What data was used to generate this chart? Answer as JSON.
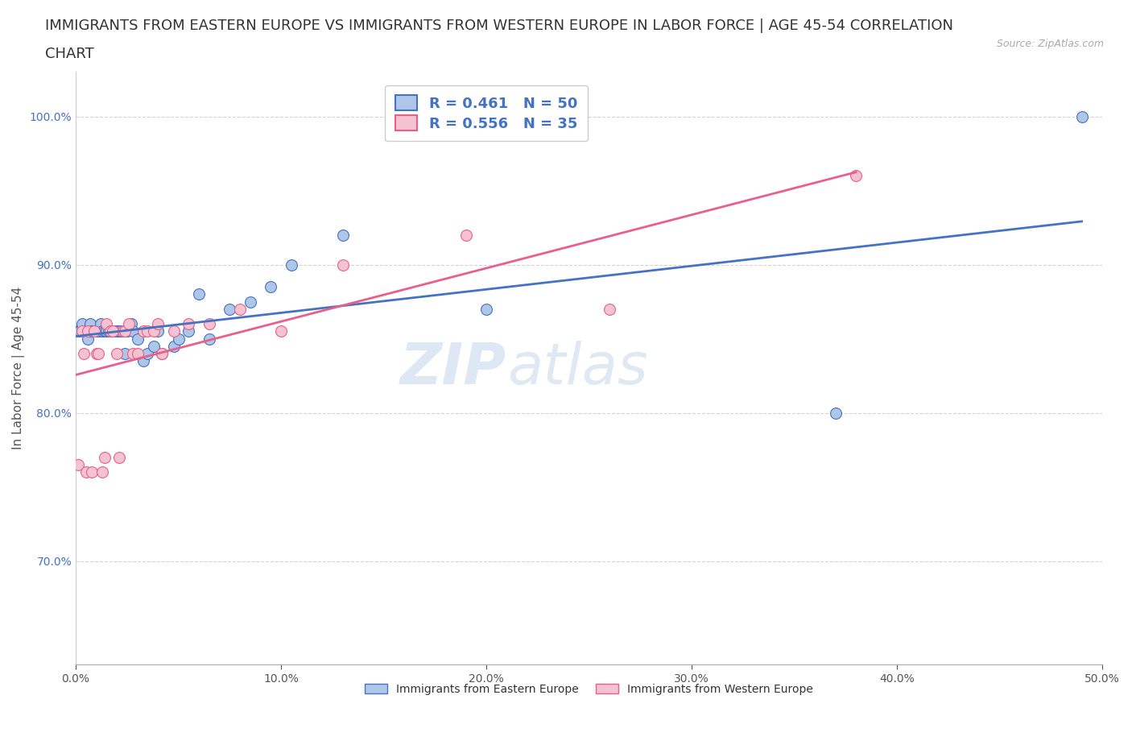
{
  "title_line1": "IMMIGRANTS FROM EASTERN EUROPE VS IMMIGRANTS FROM WESTERN EUROPE IN LABOR FORCE | AGE 45-54 CORRELATION",
  "title_line2": "CHART",
  "source": "Source: ZipAtlas.com",
  "ylabel": "In Labor Force | Age 45-54",
  "xlim": [
    0.0,
    0.5
  ],
  "ylim": [
    0.63,
    1.03
  ],
  "ytick_labels": [
    "70.0%",
    "80.0%",
    "90.0%",
    "100.0%"
  ],
  "ytick_values": [
    0.7,
    0.8,
    0.9,
    1.0
  ],
  "xtick_labels": [
    "0.0%",
    "10.0%",
    "20.0%",
    "30.0%",
    "40.0%",
    "50.0%"
  ],
  "xtick_values": [
    0.0,
    0.1,
    0.2,
    0.3,
    0.4,
    0.5
  ],
  "watermark_part1": "ZIP",
  "watermark_part2": "atlas",
  "r_eastern": 0.461,
  "n_eastern": 50,
  "r_western": 0.556,
  "n_western": 35,
  "color_eastern_fill": "#aec6e8",
  "color_western_fill": "#f4c2d0",
  "color_eastern_line": "#4472c4",
  "color_western_line": "#e8608a",
  "eastern_x": [
    0.001,
    0.002,
    0.003,
    0.003,
    0.005,
    0.006,
    0.007,
    0.007,
    0.008,
    0.008,
    0.009,
    0.009,
    0.01,
    0.01,
    0.011,
    0.012,
    0.013,
    0.013,
    0.014,
    0.015,
    0.016,
    0.017,
    0.018,
    0.019,
    0.02,
    0.021,
    0.022,
    0.024,
    0.025,
    0.027,
    0.028,
    0.03,
    0.033,
    0.035,
    0.038,
    0.04,
    0.042,
    0.048,
    0.05,
    0.055,
    0.06,
    0.065,
    0.075,
    0.085,
    0.095,
    0.105,
    0.13,
    0.2,
    0.37,
    0.49
  ],
  "eastern_y": [
    0.855,
    0.855,
    0.855,
    0.86,
    0.855,
    0.85,
    0.855,
    0.86,
    0.855,
    0.855,
    0.855,
    0.855,
    0.855,
    0.855,
    0.855,
    0.86,
    0.855,
    0.855,
    0.855,
    0.855,
    0.855,
    0.855,
    0.855,
    0.855,
    0.855,
    0.855,
    0.855,
    0.84,
    0.855,
    0.86,
    0.855,
    0.85,
    0.835,
    0.84,
    0.845,
    0.855,
    0.84,
    0.845,
    0.85,
    0.855,
    0.88,
    0.85,
    0.87,
    0.875,
    0.885,
    0.9,
    0.92,
    0.87,
    0.8,
    1.0
  ],
  "western_x": [
    0.001,
    0.003,
    0.004,
    0.005,
    0.006,
    0.008,
    0.009,
    0.01,
    0.011,
    0.013,
    0.014,
    0.015,
    0.017,
    0.018,
    0.02,
    0.021,
    0.023,
    0.024,
    0.026,
    0.028,
    0.03,
    0.033,
    0.035,
    0.038,
    0.04,
    0.042,
    0.048,
    0.055,
    0.065,
    0.08,
    0.1,
    0.13,
    0.19,
    0.26,
    0.38
  ],
  "western_y": [
    0.765,
    0.855,
    0.84,
    0.76,
    0.855,
    0.76,
    0.855,
    0.84,
    0.84,
    0.76,
    0.77,
    0.86,
    0.855,
    0.855,
    0.84,
    0.77,
    0.855,
    0.855,
    0.86,
    0.84,
    0.84,
    0.855,
    0.855,
    0.855,
    0.86,
    0.84,
    0.855,
    0.86,
    0.86,
    0.87,
    0.855,
    0.9,
    0.92,
    0.87,
    0.96
  ],
  "legend_text_color": "#4472c4",
  "title_fontsize": 13,
  "axis_label_fontsize": 11,
  "tick_fontsize": 10,
  "dot_size": 100
}
